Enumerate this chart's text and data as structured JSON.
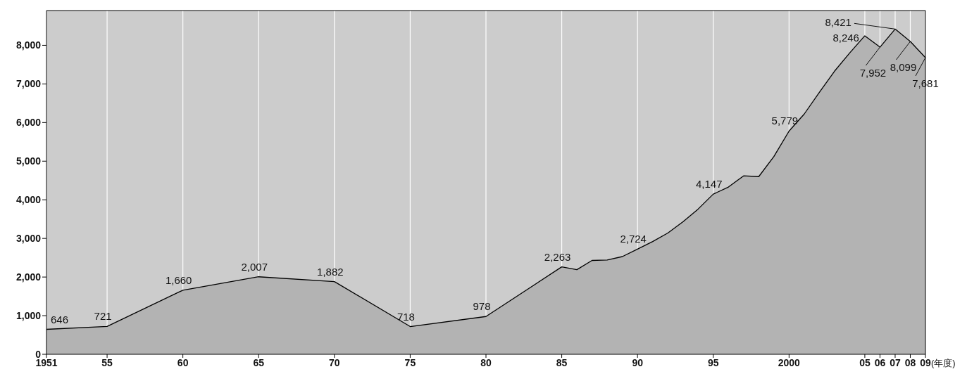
{
  "chart_data": {
    "type": "area",
    "xlabel": "(年度)",
    "x": [
      1951,
      1955,
      1960,
      1965,
      1970,
      1975,
      1980,
      1985,
      1986,
      1987,
      1988,
      1989,
      1990,
      1991,
      1992,
      1993,
      1994,
      1995,
      1996,
      1997,
      1998,
      1999,
      2000,
      2001,
      2002,
      2003,
      2004,
      2005,
      2006,
      2007,
      2008,
      2009
    ],
    "series": [
      {
        "color": "#b3b3b3",
        "values": [
          646,
          721,
          1660,
          2007,
          1882,
          718,
          978,
          2263,
          2190,
          2430,
          2440,
          2530,
          2724,
          2920,
          3140,
          3430,
          3760,
          4147,
          4330,
          4620,
          4600,
          5120,
          5779,
          6220,
          6780,
          7330,
          7800,
          8246,
          7952,
          8421,
          8099,
          7681
        ],
        "value_labels": [
          "646",
          "721",
          "1,660",
          "2,007",
          "1,882",
          "718",
          "978",
          "2,263",
          null,
          null,
          null,
          null,
          "2,724",
          null,
          null,
          null,
          null,
          "4,147",
          null,
          null,
          null,
          null,
          "5,779",
          null,
          null,
          null,
          null,
          "8,246",
          "7,952",
          "8,421",
          "8,099",
          "7,681"
        ]
      }
    ],
    "xlim": [
      1951,
      2009
    ],
    "xticks": [
      1951,
      {
        "value": 1955,
        "label": "55"
      },
      {
        "value": 1960,
        "label": "60"
      },
      {
        "value": 1965,
        "label": "65"
      },
      {
        "value": 1970,
        "label": "70"
      },
      {
        "value": 1975,
        "label": "75"
      },
      {
        "value": 1980,
        "label": "80"
      },
      {
        "value": 1985,
        "label": "85"
      },
      {
        "value": 1990,
        "label": "90"
      },
      {
        "value": 1995,
        "label": "95"
      },
      2000,
      {
        "value": 2005,
        "label": "05"
      },
      {
        "value": 2006,
        "label": "06"
      },
      {
        "value": 2007,
        "label": "07"
      },
      {
        "value": 2008,
        "label": "08"
      },
      {
        "value": 2009,
        "label": "09"
      }
    ],
    "ylim": [
      0,
      8900
    ],
    "yticks": [
      0,
      {
        "value": 1000,
        "label": "1,000"
      },
      {
        "value": 2000,
        "label": "2,000"
      },
      {
        "value": 3000,
        "label": "3,000"
      },
      {
        "value": 4000,
        "label": "4,000"
      },
      {
        "value": 5000,
        "label": "5,000"
      },
      {
        "value": 6000,
        "label": "6,000"
      },
      {
        "value": 7000,
        "label": "7,000"
      },
      {
        "value": 8000,
        "label": "8,000"
      }
    ],
    "grid": "x",
    "legend": false,
    "marker": "none",
    "line_style": "solid"
  }
}
